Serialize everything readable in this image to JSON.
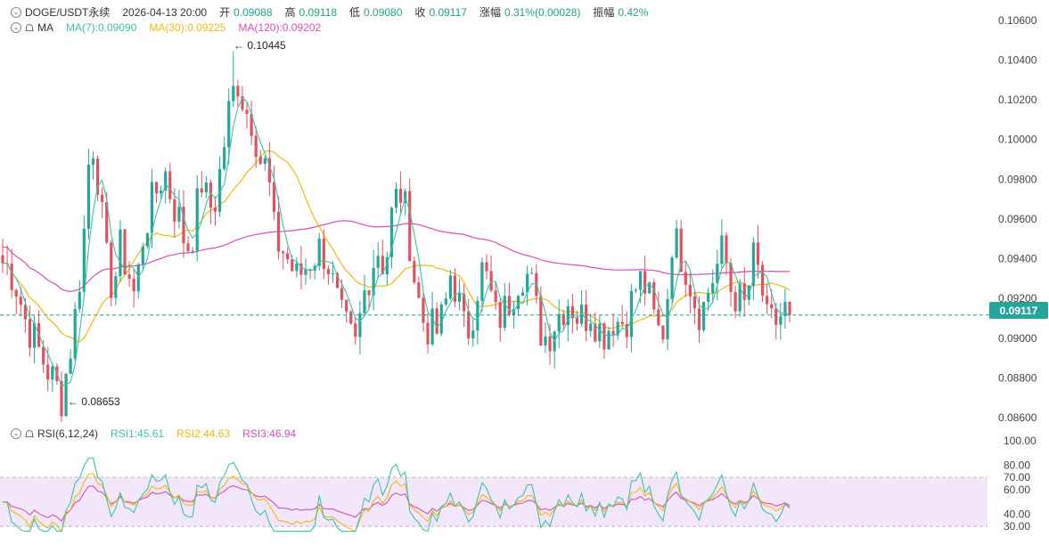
{
  "header": {
    "symbol": "DOGE/USDT永续",
    "datetime": "2026-04-13 20:00",
    "open_label": "开",
    "open_value": "0.09088",
    "high_label": "高",
    "high_value": "0.09118",
    "low_label": "低",
    "low_value": "0.09080",
    "close_label": "收",
    "close_value": "0.09117",
    "change_label": "涨幅",
    "change_value": "0.31%(0.00028)",
    "amplitude_label": "振幅",
    "amplitude_value": "0.42%"
  },
  "ma_legend": {
    "title": "MA",
    "ma7": "MA(7):0.09090",
    "ma30": "MA(30):0.09225",
    "ma120": "MA(120):0.09202"
  },
  "rsi_legend": {
    "title": "RSI(6,12,24)",
    "rsi1": "RSI1:45.61",
    "rsi2": "RSI2:44.63",
    "rsi3": "RSI3:46.94"
  },
  "colors": {
    "up": "#26a69a",
    "down": "#e0525f",
    "ma7": "#3cc3a8",
    "ma30": "#f0b90b",
    "ma120": "#d64fb5",
    "rsi1": "#3cc3a8",
    "rsi2": "#f0b90b",
    "rsi3": "#d64fb5",
    "rsi_band": "#f3e6fb"
  },
  "current_price": "0.09117",
  "annotations": {
    "high": "0.10445",
    "low": "0.08653"
  },
  "chart_data": [
    {
      "type": "candlestick",
      "title": "DOGE/USDT永续",
      "y_axis_ticks": [
        "0.10600",
        "0.10400",
        "0.10200",
        "0.10000",
        "0.09800",
        "0.09600",
        "0.09400",
        "0.09200",
        "0.09000",
        "0.08800",
        "0.08600"
      ],
      "ylim": [
        0.0856,
        0.1068
      ],
      "last_price": 0.09117,
      "period_high": 0.10445,
      "period_low": 0.08653,
      "series": [
        {
          "name": "MA(7)",
          "last": 0.0909
        },
        {
          "name": "MA(30)",
          "last": 0.09225
        },
        {
          "name": "MA(120)",
          "last": 0.09202
        }
      ],
      "close_anchors": [
        0.0938,
        0.0935,
        0.0925,
        0.091,
        0.0902,
        0.0893,
        0.0885,
        0.0878,
        0.087,
        0.089,
        0.0915,
        0.095,
        0.1005,
        0.098,
        0.094,
        0.0925,
        0.0945,
        0.0935,
        0.092,
        0.095,
        0.0965,
        0.0975,
        0.0985,
        0.097,
        0.096,
        0.0945,
        0.0955,
        0.098,
        0.0965,
        0.097,
        0.0995,
        0.102,
        0.103,
        0.1015,
        0.101,
        0.099,
        0.0985,
        0.095,
        0.0945,
        0.0938,
        0.093,
        0.0935,
        0.094,
        0.0945,
        0.0942,
        0.0925,
        0.091,
        0.0902,
        0.0895,
        0.092,
        0.0935,
        0.0945,
        0.0935,
        0.0965,
        0.0975,
        0.096,
        0.093,
        0.091,
        0.0905,
        0.0903,
        0.0912,
        0.0935,
        0.0918,
        0.09,
        0.0915,
        0.0935,
        0.0928,
        0.091,
        0.0912,
        0.092,
        0.093,
        0.0935,
        0.0925,
        0.0905,
        0.09,
        0.0908,
        0.0915,
        0.092,
        0.0912,
        0.091,
        0.0915,
        0.0905,
        0.0903,
        0.091,
        0.0908,
        0.0912,
        0.0925,
        0.093,
        0.0918,
        0.0903,
        0.0905,
        0.095,
        0.0945,
        0.0935,
        0.092,
        0.0912,
        0.0925,
        0.0935,
        0.0945,
        0.0925,
        0.092,
        0.0915,
        0.094,
        0.093,
        0.0905,
        0.0908,
        0.0912,
        0.0917
      ]
    },
    {
      "type": "line",
      "title": "RSI(6,12,24)",
      "y_axis_ticks": [
        "100.00",
        "80.00",
        "70.00",
        "60.00",
        "40.00",
        "30.00"
      ],
      "ylim": [
        30,
        100
      ],
      "band": [
        30,
        70
      ],
      "series": [
        {
          "name": "RSI1",
          "last": 45.61
        },
        {
          "name": "RSI2",
          "last": 44.63
        },
        {
          "name": "RSI3",
          "last": 46.94
        }
      ]
    }
  ]
}
